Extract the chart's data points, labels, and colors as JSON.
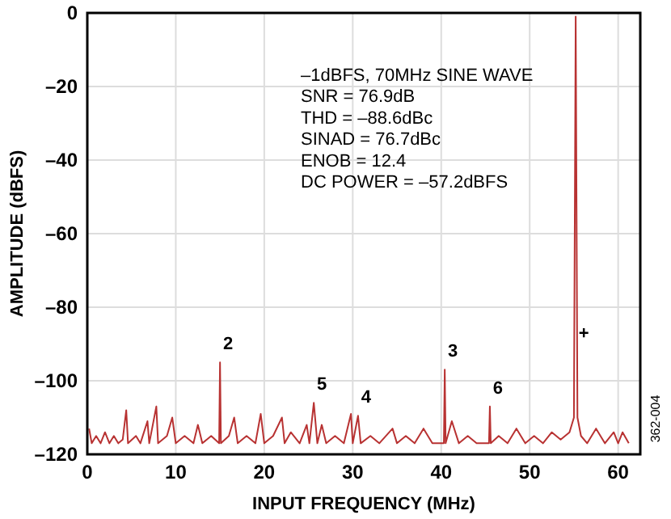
{
  "chart_data": {
    "type": "line",
    "xlabel": "INPUT FREQUENCY (MHz)",
    "ylabel": "AMPLITUDE (dBFS)",
    "xlim": [
      0,
      62.5
    ],
    "ylim": [
      -120,
      0
    ],
    "xticks": [
      0,
      10,
      20,
      30,
      40,
      50,
      60
    ],
    "yticks": [
      {
        "value": 0,
        "label": "0"
      },
      {
        "value": -20,
        "label": "–20"
      },
      {
        "value": -40,
        "label": "–40"
      },
      {
        "value": -60,
        "label": "–60"
      },
      {
        "value": -80,
        "label": "–80"
      },
      {
        "value": -100,
        "label": "–100"
      },
      {
        "value": -120,
        "label": "–120"
      }
    ],
    "grid": true,
    "marker": "none",
    "line_style": "solid",
    "series": [
      {
        "color": "#b83232",
        "x": [
          0.2,
          0.5,
          1,
          1.5,
          2,
          2.5,
          3,
          3.5,
          4,
          4.4,
          4.6,
          5.5,
          6,
          6.8,
          7,
          7.8,
          8,
          9,
          9.6,
          10,
          11,
          12,
          12.5,
          13,
          14,
          14.9,
          15,
          15.1,
          16,
          16.6,
          17,
          18,
          19,
          19.6,
          20,
          21,
          22,
          22.3,
          23,
          24,
          24.8,
          25.1,
          25.6,
          26,
          26.5,
          27,
          28,
          29,
          29.8,
          30,
          30.6,
          30.9,
          32,
          33,
          34.5,
          35,
          36,
          37,
          38,
          39,
          40.3,
          40.4,
          40.5,
          41.2,
          42,
          43,
          44,
          45.4,
          45.5,
          45.6,
          46.5,
          47.5,
          48.5,
          49.5,
          50.5,
          51.5,
          52.5,
          53.5,
          54.5,
          55,
          55.2,
          55.4,
          55.8,
          56.5,
          57.5,
          58.5,
          59.5,
          60,
          60.5,
          61.2
        ],
        "values": [
          -113,
          -117,
          -115,
          -117,
          -114,
          -117,
          -115,
          -117,
          -116,
          -108,
          -117,
          -115,
          -117,
          -111,
          -117,
          -107,
          -117,
          -115,
          -110,
          -117,
          -115,
          -117,
          -112,
          -117,
          -115,
          -117,
          -95,
          -117,
          -115,
          -110,
          -117,
          -115,
          -117,
          -109,
          -117,
          -115,
          -110,
          -117,
          -114,
          -117,
          -112,
          -117,
          -106,
          -117,
          -112,
          -117,
          -115,
          -117,
          -109,
          -117,
          -109.5,
          -117,
          -115,
          -117,
          -113,
          -117,
          -115,
          -117,
          -113,
          -117,
          -117,
          -97,
          -117,
          -111,
          -117,
          -115,
          -117,
          -117,
          -107,
          -117,
          -115,
          -117,
          -113,
          -117,
          -115,
          -117,
          -114,
          -116,
          -114,
          -110,
          -1,
          -110,
          -115,
          -117,
          -113,
          -117,
          -114,
          -117,
          -114,
          -117
        ]
      }
    ],
    "annotations": [
      "–1dBFS, 70MHz SINE WAVE",
      "SNR = 76.9dB",
      "THD = –88.6dBc",
      "SINAD = 76.7dBc",
      "ENOB = 12.4",
      "DC POWER = –57.2dBFS",
      {
        "text": "2",
        "x": 15,
        "y": -95
      },
      {
        "text": "3",
        "x": 40.4,
        "y": -97
      },
      {
        "text": "5",
        "x": 25.6,
        "y": -106
      },
      {
        "text": "4",
        "x": 30.6,
        "y": -109.5
      },
      {
        "text": "6",
        "x": 45.5,
        "y": -107
      },
      {
        "text": "+",
        "x": 55.2,
        "y": -92
      },
      "362-004"
    ]
  }
}
